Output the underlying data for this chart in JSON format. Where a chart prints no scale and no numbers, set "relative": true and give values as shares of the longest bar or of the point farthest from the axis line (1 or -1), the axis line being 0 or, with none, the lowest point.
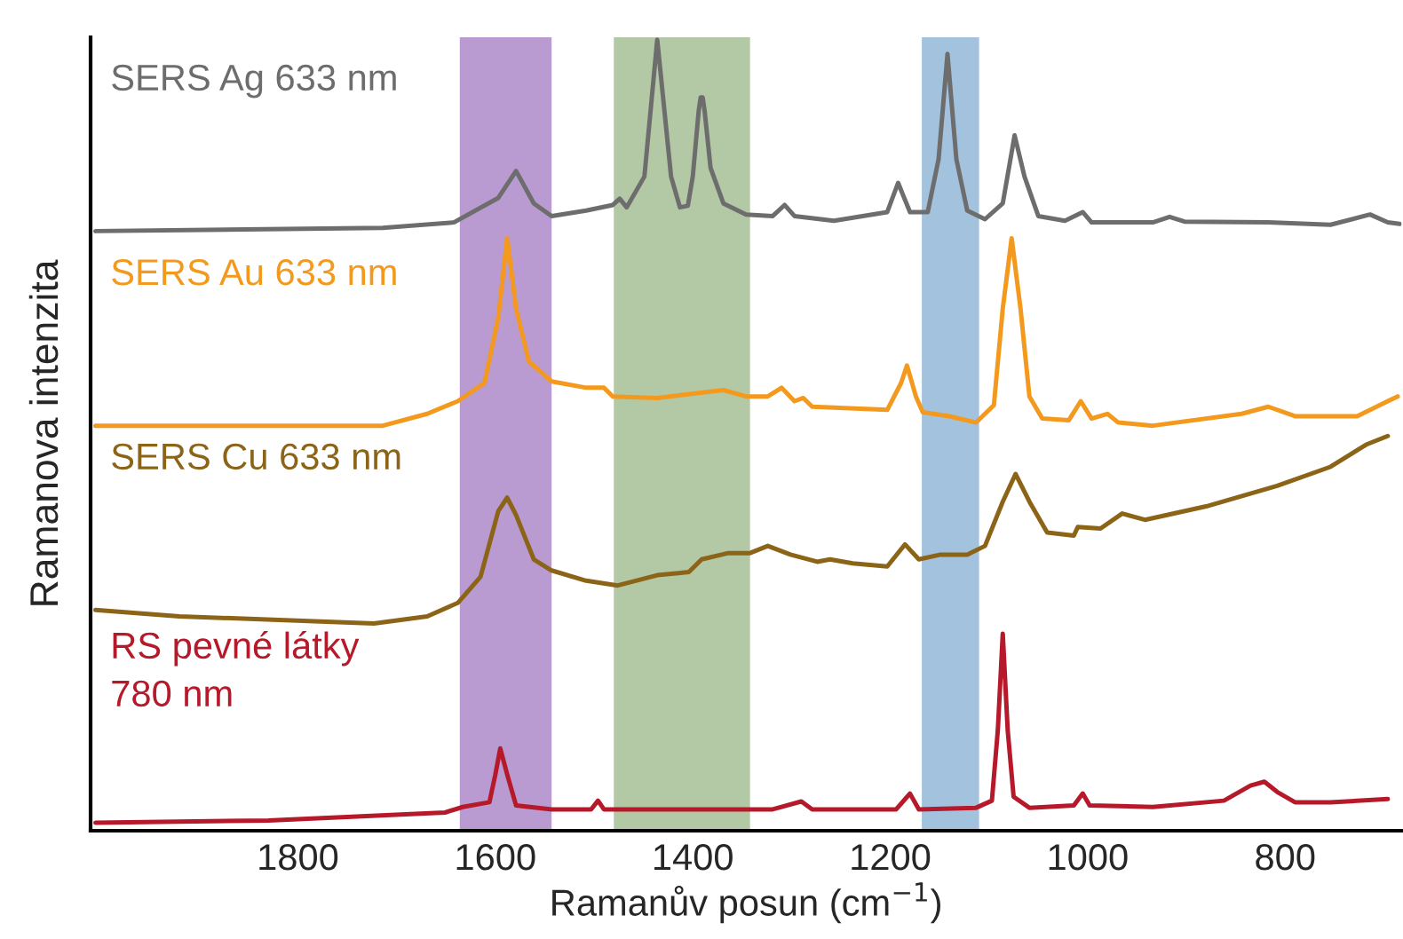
{
  "chart_data": {
    "type": "line",
    "xlabel": "Ramanův posun (cm$^{−1}$)",
    "ylabel": "Ramanova intenzita",
    "relative": true,
    "legend": false,
    "grid": false,
    "xlim": [
      2010,
      682
    ],
    "xticks": [
      1800,
      1600,
      1400,
      1200,
      1000,
      800
    ],
    "bands": [
      {
        "axis": "x",
        "from": 1636,
        "to": 1543,
        "color": "#b99bd1"
      },
      {
        "axis": "x",
        "from": 1480,
        "to": 1342,
        "color": "#b3c9a6"
      },
      {
        "axis": "x",
        "from": 1168,
        "to": 1110,
        "color": "#a3c2de"
      }
    ],
    "series": [
      {
        "name": "SERS Ag 633 nm",
        "color": "#6d6d6d",
        "x": [
          2005,
          1714,
          1642,
          1597,
          1579,
          1561,
          1543,
          1508,
          1481,
          1474,
          1467,
          1449,
          1436,
          1422,
          1413,
          1405,
          1400,
          1394,
          1392,
          1390,
          1388,
          1382,
          1369,
          1346,
          1319,
          1307,
          1297,
          1257,
          1203,
          1192,
          1180,
          1162,
          1151,
          1142,
          1133,
          1122,
          1104,
          1086,
          1074,
          1064,
          1050,
          1023,
          1005,
          996,
          934,
          917,
          902,
          817,
          754,
          714,
          696,
          684
        ],
        "values": [
          0.758,
          0.762,
          0.769,
          0.8,
          0.834,
          0.793,
          0.777,
          0.784,
          0.791,
          0.799,
          0.788,
          0.827,
          1.0,
          0.827,
          0.788,
          0.79,
          0.827,
          0.91,
          0.927,
          0.927,
          0.91,
          0.838,
          0.793,
          0.779,
          0.777,
          0.791,
          0.777,
          0.771,
          0.782,
          0.819,
          0.782,
          0.782,
          0.849,
          0.982,
          0.849,
          0.784,
          0.773,
          0.793,
          0.879,
          0.827,
          0.777,
          0.771,
          0.782,
          0.769,
          0.769,
          0.776,
          0.77,
          0.769,
          0.766,
          0.779,
          0.769,
          0.767
        ]
      },
      {
        "name": "SERS Au 633 nm",
        "color": "#f39a1e",
        "x": [
          2005,
          1714,
          1669,
          1638,
          1611,
          1597,
          1588,
          1579,
          1566,
          1543,
          1508,
          1490,
          1481,
          1436,
          1369,
          1346,
          1324,
          1310,
          1297,
          1288,
          1279,
          1203,
          1189,
          1183,
          1174,
          1167,
          1140,
          1113,
          1095,
          1086,
          1077,
          1068,
          1059,
          1046,
          1019,
          1007,
          996,
          980,
          969,
          934,
          844,
          817,
          790,
          727,
          696,
          686
        ],
        "values": [
          0.512,
          0.512,
          0.527,
          0.543,
          0.566,
          0.649,
          0.749,
          0.66,
          0.593,
          0.568,
          0.56,
          0.56,
          0.549,
          0.547,
          0.557,
          0.549,
          0.549,
          0.56,
          0.543,
          0.547,
          0.536,
          0.532,
          0.566,
          0.588,
          0.549,
          0.529,
          0.524,
          0.516,
          0.538,
          0.66,
          0.749,
          0.66,
          0.549,
          0.521,
          0.519,
          0.543,
          0.521,
          0.527,
          0.516,
          0.512,
          0.527,
          0.536,
          0.524,
          0.524,
          0.543,
          0.549
        ]
      },
      {
        "name": "SERS Cu 633 nm",
        "color": "#8c6418",
        "x": [
          2005,
          1920,
          1723,
          1669,
          1638,
          1615,
          1597,
          1588,
          1579,
          1561,
          1543,
          1508,
          1476,
          1436,
          1404,
          1391,
          1364,
          1342,
          1324,
          1301,
          1274,
          1261,
          1238,
          1203,
          1185,
          1171,
          1149,
          1122,
          1104,
          1086,
          1073,
          1059,
          1041,
          1014,
          1010,
          987,
          965,
          942,
          880,
          808,
          754,
          718,
          696
        ],
        "values": [
          0.279,
          0.271,
          0.262,
          0.271,
          0.288,
          0.321,
          0.404,
          0.421,
          0.399,
          0.343,
          0.329,
          0.316,
          0.31,
          0.323,
          0.327,
          0.343,
          0.351,
          0.351,
          0.36,
          0.349,
          0.34,
          0.343,
          0.338,
          0.334,
          0.362,
          0.343,
          0.349,
          0.349,
          0.36,
          0.416,
          0.451,
          0.416,
          0.377,
          0.373,
          0.384,
          0.382,
          0.401,
          0.393,
          0.41,
          0.436,
          0.46,
          0.488,
          0.499
        ]
      },
      {
        "name": "RS pevné látky\n780 nm",
        "color": "#b5192a",
        "x": [
          2005,
          1830,
          1651,
          1633,
          1606,
          1600,
          1595,
          1588,
          1579,
          1543,
          1503,
          1496,
          1490,
          1382,
          1319,
          1290,
          1279,
          1194,
          1180,
          1171,
          1113,
          1097,
          1091,
          1086,
          1081,
          1075,
          1059,
          1014,
          1005,
          998,
          934,
          862,
          835,
          821,
          808,
          790,
          754,
          696
        ],
        "values": [
          0.01,
          0.013,
          0.023,
          0.03,
          0.036,
          0.071,
          0.104,
          0.071,
          0.032,
          0.027,
          0.027,
          0.038,
          0.027,
          0.027,
          0.027,
          0.037,
          0.027,
          0.027,
          0.047,
          0.027,
          0.029,
          0.038,
          0.127,
          0.249,
          0.127,
          0.043,
          0.029,
          0.032,
          0.047,
          0.032,
          0.03,
          0.038,
          0.057,
          0.062,
          0.049,
          0.036,
          0.036,
          0.04
        ]
      }
    ]
  }
}
